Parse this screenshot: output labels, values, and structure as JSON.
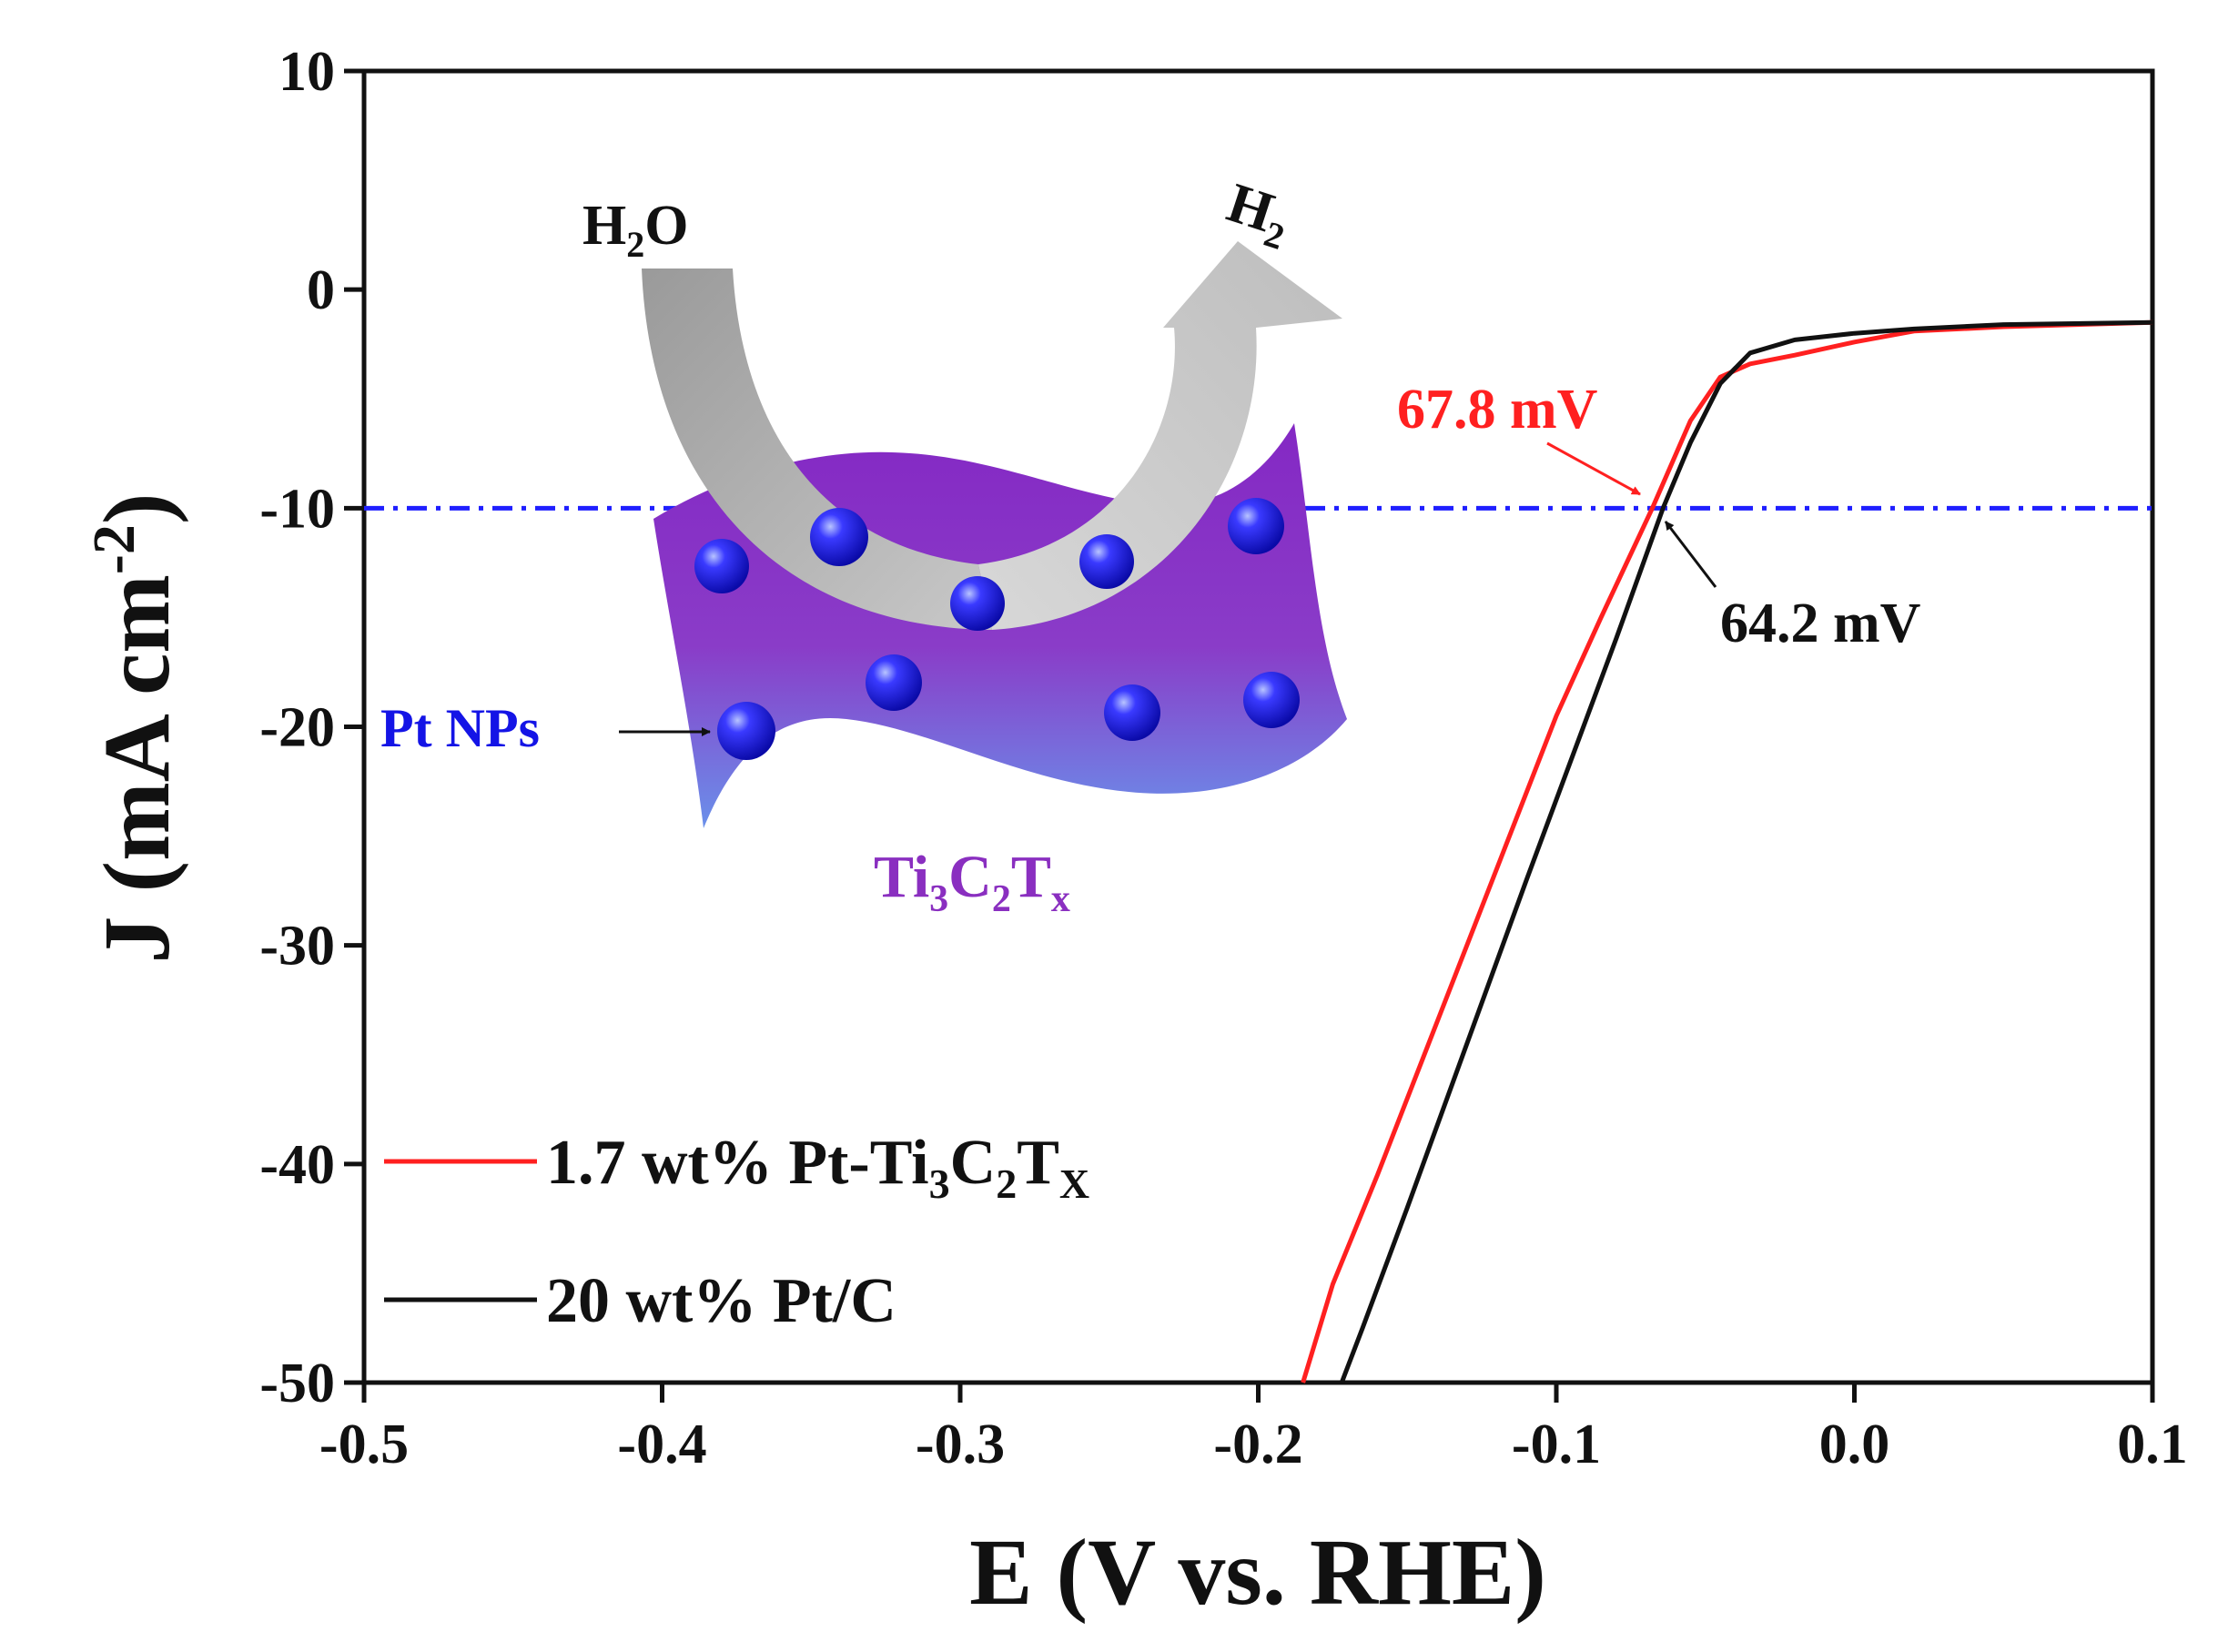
{
  "chart_data": {
    "type": "line",
    "title": "",
    "xlabel": "E (V vs. RHE)",
    "ylabel_main": "J (mA cm",
    "ylabel_sup": "-2",
    "ylabel_close": ")",
    "xlim": [
      -0.5,
      0.1
    ],
    "ylim": [
      -50,
      10
    ],
    "xticks": [
      -0.5,
      -0.4,
      -0.3,
      -0.2,
      -0.1,
      0.0,
      0.1
    ],
    "xtick_labels": [
      "-0.5",
      "-0.4",
      "-0.3",
      "-0.2",
      "-0.1",
      "0.0",
      "0.1"
    ],
    "yticks": [
      10,
      0,
      -10,
      -20,
      -30,
      -40,
      -50
    ],
    "ytick_labels": [
      "10",
      "0",
      "-10",
      "-20",
      "-30",
      "-40",
      "-50"
    ],
    "reference_line": {
      "y": -10,
      "style": "dash-dot",
      "color": "#1f1fff"
    },
    "series": [
      {
        "name": "1.7 wt% Pt-Ti3C2Tx",
        "legend_prefix": "1.7 wt%  Pt-Ti",
        "legend_sub1": "3",
        "legend_mid": "C",
        "legend_sub2": "2",
        "legend_mid2": "T",
        "legend_sub3": "X",
        "color": "#ff2020",
        "x": [
          -0.185,
          -0.175,
          -0.16,
          -0.14,
          -0.12,
          -0.1,
          -0.085,
          -0.0678,
          -0.055,
          -0.045,
          -0.035,
          -0.02,
          0.0,
          0.02,
          0.05,
          0.1
        ],
        "y": [
          -50,
          -45.5,
          -40.5,
          -33.5,
          -26.5,
          -19.5,
          -15,
          -10,
          -6,
          -4,
          -3.4,
          -3.0,
          -2.4,
          -1.9,
          -1.7,
          -1.5
        ]
      },
      {
        "name": "20 wt% Pt/C",
        "legend_label": "20 wt%  Pt/C",
        "color": "#111111",
        "x": [
          -0.172,
          -0.165,
          -0.15,
          -0.13,
          -0.11,
          -0.095,
          -0.08,
          -0.0642,
          -0.055,
          -0.045,
          -0.035,
          -0.02,
          0.0,
          0.02,
          0.05,
          0.1
        ],
        "y": [
          -50,
          -47.5,
          -42,
          -34.5,
          -27,
          -21.5,
          -16,
          -10,
          -7,
          -4.3,
          -2.9,
          -2.3,
          -2.0,
          -1.8,
          -1.6,
          -1.5
        ]
      }
    ],
    "annotations": [
      {
        "text": "67.8 mV",
        "color": "#ff2020",
        "x": -0.0678,
        "y": -10
      },
      {
        "text": "64.2 mV",
        "color": "#111111",
        "x": -0.0642,
        "y": -10
      }
    ],
    "inset": {
      "reactant": "H",
      "reactant_sub": "2",
      "reactant_end": "O",
      "product": "H",
      "product_sub": "2",
      "np_label": "Pt NPs",
      "support_a": "Ti",
      "support_sub1": "3",
      "support_b": "C",
      "support_sub2": "2",
      "support_c": "T",
      "support_sub3": "x",
      "np_color": "#1414e6",
      "support_color": "#8a2fc0"
    }
  }
}
